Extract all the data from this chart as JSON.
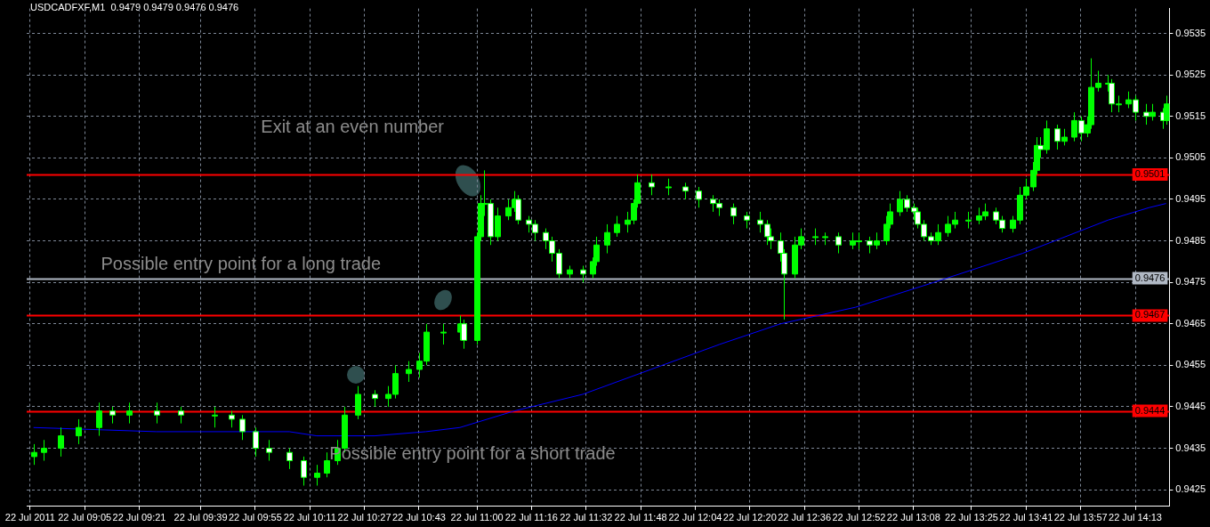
{
  "chart_data": {
    "type": "candlestick",
    "title": "USDCADFXF,M1  0.9479 0.9479 0.9476 0.9476",
    "color": "#00ff00",
    "x": [
      "2011-07-22T08:50",
      "2011-07-22T08:53",
      "2011-07-22T08:58",
      "2011-07-22T09:03",
      "2011-07-22T09:09",
      "2011-07-22T09:13",
      "2011-07-22T09:18",
      "2011-07-22T09:26",
      "2011-07-22T09:33",
      "2011-07-22T09:43",
      "2011-07-22T09:48",
      "2011-07-22T09:51",
      "2011-07-22T09:55",
      "2011-07-22T09:59",
      "2011-07-22T10:05",
      "2011-07-22T10:09",
      "2011-07-22T10:13",
      "2011-07-22T10:16",
      "2011-07-22T10:19",
      "2011-07-22T10:21",
      "2011-07-22T10:25",
      "2011-07-22T10:30",
      "2011-07-22T10:34",
      "2011-07-22T10:36",
      "2011-07-22T10:40",
      "2011-07-22T10:43",
      "2011-07-22T10:45",
      "2011-07-22T10:50",
      "2011-07-22T10:55",
      "2011-07-22T10:56",
      "2011-07-22T11:00",
      "2011-07-22T11:01",
      "2011-07-22T11:02",
      "2011-07-22T11:04",
      "2011-07-22T11:06",
      "2011-07-22T11:09",
      "2011-07-22T11:11",
      "2011-07-22T11:12",
      "2011-07-22T11:15",
      "2011-07-22T11:17",
      "2011-07-22T11:20",
      "2011-07-22T11:22",
      "2011-07-22T11:24",
      "2011-07-22T11:27",
      "2011-07-22T11:31",
      "2011-07-22T11:34",
      "2011-07-22T11:35",
      "2011-07-22T11:38",
      "2011-07-22T11:41",
      "2011-07-22T11:44",
      "2011-07-22T11:46",
      "2011-07-22T11:47",
      "2011-07-22T11:51",
      "2011-07-22T11:56",
      "2011-07-22T12:01",
      "2011-07-22T12:05",
      "2011-07-22T12:09",
      "2011-07-22T12:11",
      "2011-07-22T12:15",
      "2011-07-22T12:19",
      "2011-07-22T12:23",
      "2011-07-22T12:25",
      "2011-07-22T12:26",
      "2011-07-22T12:29",
      "2011-07-22T12:30",
      "2011-07-22T12:33",
      "2011-07-22T12:35",
      "2011-07-22T12:39",
      "2011-07-22T12:42",
      "2011-07-22T12:46",
      "2011-07-22T12:50",
      "2011-07-22T12:52",
      "2011-07-22T12:55",
      "2011-07-22T12:57",
      "2011-07-22T13:00",
      "2011-07-22T13:01",
      "2011-07-22T13:04",
      "2011-07-22T13:06",
      "2011-07-22T13:08",
      "2011-07-22T13:09",
      "2011-07-22T13:11",
      "2011-07-22T13:13",
      "2011-07-22T13:15",
      "2011-07-22T13:18",
      "2011-07-22T13:20",
      "2011-07-22T13:24",
      "2011-07-22T13:27",
      "2011-07-22T13:29",
      "2011-07-22T13:32",
      "2011-07-22T13:34",
      "2011-07-22T13:37",
      "2011-07-22T13:39",
      "2011-07-22T13:41",
      "2011-07-22T13:43",
      "2011-07-22T13:44",
      "2011-07-22T13:45",
      "2011-07-22T13:47",
      "2011-07-22T13:50",
      "2011-07-22T13:52",
      "2011-07-22T13:55",
      "2011-07-22T13:57",
      "2011-07-22T13:59",
      "2011-07-22T14:00",
      "2011-07-22T14:02",
      "2011-07-22T14:05",
      "2011-07-22T14:06",
      "2011-07-22T14:08",
      "2011-07-22T14:11",
      "2011-07-22T14:13",
      "2011-07-22T14:16",
      "2011-07-22T14:18",
      "2011-07-22T14:21",
      "2011-07-22T14:22"
    ],
    "ohlc": [
      [
        0.9433,
        0.9436,
        0.9431,
        0.9434
      ],
      [
        0.9434,
        0.9437,
        0.9432,
        0.9435
      ],
      [
        0.9435,
        0.944,
        0.9433,
        0.9438
      ],
      [
        0.9438,
        0.9442,
        0.9436,
        0.944
      ],
      [
        0.944,
        0.9446,
        0.9438,
        0.9444
      ],
      [
        0.9444,
        0.9445,
        0.9441,
        0.9443
      ],
      [
        0.9443,
        0.9446,
        0.9441,
        0.9444
      ],
      [
        0.9444,
        0.9446,
        0.9441,
        0.9443
      ],
      [
        0.9444,
        0.9445,
        0.9441,
        0.9443
      ],
      [
        0.9443,
        0.9445,
        0.944,
        0.9443
      ],
      [
        0.9443,
        0.9444,
        0.944,
        0.9442
      ],
      [
        0.9442,
        0.9443,
        0.9437,
        0.9439
      ],
      [
        0.9439,
        0.944,
        0.9433,
        0.9435
      ],
      [
        0.9435,
        0.9437,
        0.9432,
        0.9434
      ],
      [
        0.9434,
        0.9435,
        0.943,
        0.9432
      ],
      [
        0.9432,
        0.9433,
        0.9426,
        0.9428
      ],
      [
        0.9428,
        0.9431,
        0.9426,
        0.9429
      ],
      [
        0.9429,
        0.9434,
        0.9428,
        0.9432
      ],
      [
        0.9432,
        0.9437,
        0.9431,
        0.9435
      ],
      [
        0.9435,
        0.9445,
        0.9434,
        0.9443
      ],
      [
        0.9443,
        0.945,
        0.9442,
        0.9448
      ],
      [
        0.9448,
        0.9449,
        0.9445,
        0.9447
      ],
      [
        0.9447,
        0.945,
        0.9445,
        0.9448
      ],
      [
        0.9448,
        0.9455,
        0.9447,
        0.9453
      ],
      [
        0.9453,
        0.9456,
        0.9451,
        0.9454
      ],
      [
        0.9454,
        0.9458,
        0.9452,
        0.9456
      ],
      [
        0.9456,
        0.9465,
        0.9455,
        0.9463
      ],
      [
        0.9463,
        0.9465,
        0.946,
        0.9463
      ],
      [
        0.9463,
        0.9467,
        0.9461,
        0.9465
      ],
      [
        0.9465,
        0.9466,
        0.9459,
        0.9461
      ],
      [
        0.9461,
        0.9487,
        0.946,
        0.9486
      ],
      [
        0.9486,
        0.9496,
        0.9485,
        0.9494
      ],
      [
        0.9494,
        0.9502,
        0.9491,
        0.9494
      ],
      [
        0.9494,
        0.9495,
        0.9484,
        0.9486
      ],
      [
        0.9486,
        0.9493,
        0.9485,
        0.9491
      ],
      [
        0.9491,
        0.9495,
        0.949,
        0.9493
      ],
      [
        0.9493,
        0.9497,
        0.9492,
        0.9495
      ],
      [
        0.9495,
        0.9496,
        0.9489,
        0.949
      ],
      [
        0.949,
        0.9491,
        0.9487,
        0.9489
      ],
      [
        0.9489,
        0.949,
        0.9485,
        0.9487
      ],
      [
        0.9487,
        0.9488,
        0.9483,
        0.9485
      ],
      [
        0.9485,
        0.9486,
        0.948,
        0.9482
      ],
      [
        0.9482,
        0.9483,
        0.9476,
        0.9477
      ],
      [
        0.9477,
        0.9479,
        0.9476,
        0.9478
      ],
      [
        0.9478,
        0.9479,
        0.9475,
        0.9477
      ],
      [
        0.9477,
        0.9481,
        0.9476,
        0.948
      ],
      [
        0.948,
        0.9486,
        0.9479,
        0.9484
      ],
      [
        0.9484,
        0.9489,
        0.9482,
        0.9487
      ],
      [
        0.9487,
        0.9491,
        0.9486,
        0.9489
      ],
      [
        0.9489,
        0.9492,
        0.9487,
        0.949
      ],
      [
        0.949,
        0.9495,
        0.9489,
        0.9494
      ],
      [
        0.9494,
        0.9501,
        0.9493,
        0.9499
      ],
      [
        0.9499,
        0.9501,
        0.9496,
        0.9498
      ],
      [
        0.9498,
        0.95,
        0.9496,
        0.9498
      ],
      [
        0.9498,
        0.9499,
        0.9495,
        0.9497
      ],
      [
        0.9497,
        0.9498,
        0.9493,
        0.9495
      ],
      [
        0.9495,
        0.9496,
        0.9492,
        0.9494
      ],
      [
        0.9494,
        0.9495,
        0.9491,
        0.9493
      ],
      [
        0.9493,
        0.9494,
        0.9489,
        0.9491
      ],
      [
        0.9491,
        0.9492,
        0.9488,
        0.949
      ],
      [
        0.949,
        0.9492,
        0.9487,
        0.9489
      ],
      [
        0.9489,
        0.949,
        0.9484,
        0.9486
      ],
      [
        0.9486,
        0.9488,
        0.9483,
        0.9485
      ],
      [
        0.9485,
        0.9487,
        0.948,
        0.9482
      ],
      [
        0.9482,
        0.9483,
        0.9466,
        0.9477
      ],
      [
        0.9477,
        0.9486,
        0.9476,
        0.9484
      ],
      [
        0.9484,
        0.9488,
        0.9483,
        0.9486
      ],
      [
        0.9486,
        0.9488,
        0.9484,
        0.9486
      ],
      [
        0.9486,
        0.9487,
        0.9484,
        0.9486
      ],
      [
        0.9486,
        0.9487,
        0.9482,
        0.9484
      ],
      [
        0.9484,
        0.9487,
        0.9483,
        0.9485
      ],
      [
        0.9485,
        0.9487,
        0.9483,
        0.9485
      ],
      [
        0.9485,
        0.9486,
        0.9482,
        0.9484
      ],
      [
        0.9484,
        0.9487,
        0.9483,
        0.9485
      ],
      [
        0.9485,
        0.9491,
        0.9484,
        0.9489
      ],
      [
        0.9489,
        0.9494,
        0.9488,
        0.9492
      ],
      [
        0.9492,
        0.9497,
        0.9491,
        0.9495
      ],
      [
        0.9495,
        0.9496,
        0.9492,
        0.9493
      ],
      [
        0.9493,
        0.9494,
        0.949,
        0.9492
      ],
      [
        0.9492,
        0.9493,
        0.9488,
        0.9489
      ],
      [
        0.9489,
        0.949,
        0.9485,
        0.9486
      ],
      [
        0.9486,
        0.9487,
        0.9484,
        0.9485
      ],
      [
        0.9485,
        0.9489,
        0.9484,
        0.9487
      ],
      [
        0.9487,
        0.9491,
        0.9486,
        0.9489
      ],
      [
        0.9489,
        0.9492,
        0.9488,
        0.949
      ],
      [
        0.949,
        0.9492,
        0.9488,
        0.949
      ],
      [
        0.949,
        0.9493,
        0.9489,
        0.9491
      ],
      [
        0.9491,
        0.9494,
        0.949,
        0.9492
      ],
      [
        0.9492,
        0.9493,
        0.9489,
        0.949
      ],
      [
        0.949,
        0.9491,
        0.9487,
        0.9488
      ],
      [
        0.9488,
        0.9491,
        0.9487,
        0.949
      ],
      [
        0.949,
        0.9498,
        0.9489,
        0.9496
      ],
      [
        0.9496,
        0.95,
        0.9495,
        0.9498
      ],
      [
        0.9498,
        0.9504,
        0.9497,
        0.9502
      ],
      [
        0.9502,
        0.951,
        0.9501,
        0.9508
      ],
      [
        0.9508,
        0.951,
        0.9505,
        0.9507
      ],
      [
        0.9507,
        0.9514,
        0.9506,
        0.9512
      ],
      [
        0.9512,
        0.9513,
        0.9507,
        0.9509
      ],
      [
        0.9509,
        0.9512,
        0.9508,
        0.951
      ],
      [
        0.951,
        0.9516,
        0.9509,
        0.9514
      ],
      [
        0.9514,
        0.9515,
        0.9509,
        0.9511
      ],
      [
        0.9511,
        0.9515,
        0.951,
        0.9513
      ],
      [
        0.9513,
        0.9529,
        0.9512,
        0.9522
      ],
      [
        0.9522,
        0.9526,
        0.9521,
        0.9523
      ],
      [
        0.9523,
        0.9525,
        0.9521,
        0.9523
      ],
      [
        0.9523,
        0.9524,
        0.9516,
        0.9518
      ],
      [
        0.9518,
        0.952,
        0.9516,
        0.9518
      ],
      [
        0.9518,
        0.9521,
        0.9517,
        0.9519
      ],
      [
        0.9519,
        0.952,
        0.9514,
        0.9516
      ],
      [
        0.9516,
        0.9518,
        0.9513,
        0.9515
      ],
      [
        0.9515,
        0.9518,
        0.9514,
        0.9516
      ],
      [
        0.9516,
        0.9517,
        0.9512,
        0.9514
      ],
      [
        0.9514,
        0.952,
        0.9513,
        0.9518
      ]
    ],
    "colors": [
      "#00ff00",
      "#00ff00",
      "#00ff00",
      "#00ff00",
      "#00ff00",
      "#ffffff",
      "#00ff00",
      "#ffffff",
      "#ffffff",
      "#00ff00",
      "#ffffff",
      "#ffffff",
      "#ffffff",
      "#ffffff",
      "#ffffff",
      "#ffffff",
      "#00ff00",
      "#00ff00",
      "#00ff00",
      "#00ff00",
      "#00ff00",
      "#ffffff",
      "#00ff00",
      "#00ff00",
      "#00ff00",
      "#00ff00",
      "#00ff00",
      "#00ff00",
      "#00ff00",
      "#ffffff",
      "#00ff00",
      "#00ff00",
      "#00ff00",
      "#ffffff",
      "#00ff00",
      "#00ff00",
      "#00ff00",
      "#ffffff",
      "#ffffff",
      "#ffffff",
      "#ffffff",
      "#ffffff",
      "#ffffff",
      "#00ff00",
      "#ffffff",
      "#00ff00",
      "#00ff00",
      "#00ff00",
      "#00ff00",
      "#00ff00",
      "#00ff00",
      "#00ff00",
      "#ffffff",
      "#00ff00",
      "#ffffff",
      "#ffffff",
      "#ffffff",
      "#ffffff",
      "#ffffff",
      "#ffffff",
      "#ffffff",
      "#ffffff",
      "#ffffff",
      "#ffffff",
      "#ffffff",
      "#00ff00",
      "#00ff00",
      "#00ff00",
      "#00ff00",
      "#ffffff",
      "#00ff00",
      "#00ff00",
      "#ffffff",
      "#00ff00",
      "#00ff00",
      "#00ff00",
      "#00ff00",
      "#ffffff",
      "#ffffff",
      "#ffffff",
      "#ffffff",
      "#ffffff",
      "#00ff00",
      "#00ff00",
      "#00ff00",
      "#00ff00",
      "#00ff00",
      "#00ff00",
      "#ffffff",
      "#ffffff",
      "#00ff00",
      "#00ff00",
      "#00ff00",
      "#00ff00",
      "#00ff00",
      "#ffffff",
      "#00ff00",
      "#ffffff",
      "#00ff00",
      "#00ff00",
      "#ffffff",
      "#00ff00",
      "#00ff00",
      "#00ff00",
      "#00ff00",
      "#ffffff",
      "#00ff00",
      "#00ff00",
      "#ffffff",
      "#ffffff",
      "#00ff00",
      "#ffffff",
      "#00ff00"
    ],
    "series": [
      {
        "type": "line",
        "color": "#0000ff",
        "x": [
          "2011-07-22T08:50",
          "2011-07-22T09:26",
          "2011-07-22T10:05",
          "2011-07-22T10:13",
          "2011-07-22T10:30",
          "2011-07-22T10:45",
          "2011-07-22T10:55",
          "2011-07-22T11:11",
          "2011-07-22T11:31",
          "2011-07-22T11:51",
          "2011-07-22T12:11",
          "2011-07-22T12:29",
          "2011-07-22T12:51",
          "2011-07-22T13:14",
          "2011-07-22T13:40",
          "2011-07-22T14:05",
          "2011-07-22T14:17",
          "2011-07-22T14:22"
        ],
        "values": [
          0.944,
          0.9439,
          0.9439,
          0.9438,
          0.9438,
          0.9439,
          0.944,
          0.9444,
          0.9448,
          0.9454,
          0.946,
          0.9465,
          0.9469,
          0.9475,
          0.9482,
          0.949,
          0.9493,
          0.9494
        ]
      }
    ],
    "xlim": [
      "2011-07-22T08:48",
      "2011-07-22T14:23"
    ],
    "xticks": [
      {
        "value": "2011-07-22T08:49",
        "label": "22 Jul 2011"
      },
      {
        "value": "2011-07-22T09:05",
        "label": "22 Jul 09:05"
      },
      {
        "value": "2011-07-22T09:21",
        "label": "22 Jul 09:21"
      },
      {
        "value": "2011-07-22T09:39",
        "label": "22 Jul 09:39"
      },
      {
        "value": "2011-07-22T09:55",
        "label": "22 Jul 09:55"
      },
      {
        "value": "2011-07-22T10:11",
        "label": "22 Jul 10:11"
      },
      {
        "value": "2011-07-22T10:27",
        "label": "22 Jul 10:27"
      },
      {
        "value": "2011-07-22T10:43",
        "label": "22 Jul 10:43"
      },
      {
        "value": "2011-07-22T11:00",
        "label": "22 Jul 11:00"
      },
      {
        "value": "2011-07-22T11:16",
        "label": "22 Jul 11:16"
      },
      {
        "value": "2011-07-22T11:32",
        "label": "22 Jul 11:32"
      },
      {
        "value": "2011-07-22T11:48",
        "label": "22 Jul 11:48"
      },
      {
        "value": "2011-07-22T12:04",
        "label": "22 Jul 12:04"
      },
      {
        "value": "2011-07-22T12:20",
        "label": "22 Jul 12:20"
      },
      {
        "value": "2011-07-22T12:36",
        "label": "22 Jul 12:36"
      },
      {
        "value": "2011-07-22T12:52",
        "label": "22 Jul 12:52"
      },
      {
        "value": "2011-07-22T13:08",
        "label": "22 Jul 13:08"
      },
      {
        "value": "2011-07-22T13:25",
        "label": "22 Jul 13:25"
      },
      {
        "value": "2011-07-22T13:41",
        "label": "22 Jul 13:41"
      },
      {
        "value": "2011-07-22T13:57",
        "label": "22 Jul 13:57"
      },
      {
        "value": "2011-07-22T14:13",
        "label": "22 Jul 14:13"
      }
    ],
    "ylim": [
      0.9421,
      0.9541
    ],
    "yticks": [
      0.9425,
      0.9435,
      0.9445,
      0.9455,
      0.9465,
      0.9475,
      0.9485,
      0.9495,
      0.9505,
      0.9515,
      0.9525,
      0.9535
    ],
    "ref_lines": [
      {
        "axis": "y",
        "value": 0.9501,
        "label": "0.9501",
        "color": "#ff0000"
      },
      {
        "axis": "y",
        "value": 0.9476,
        "label": "0.9476",
        "color": "#b0b8c4"
      },
      {
        "axis": "y",
        "value": 0.9467,
        "label": "0.9467",
        "color": "#ff0000"
      },
      {
        "axis": "y",
        "value": 0.9444,
        "label": "0.9444",
        "color": "#ff0000"
      }
    ],
    "annotations": [
      "Exit at an even number",
      "Possible entry point for a long trade",
      "Possible entry point for a short trade"
    ],
    "grid": true
  }
}
